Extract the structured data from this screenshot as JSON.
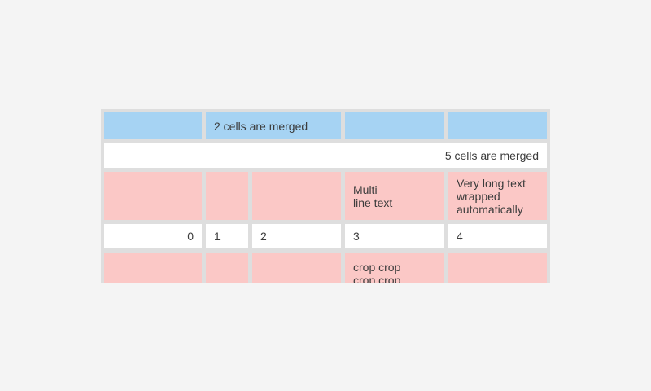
{
  "colors": {
    "page_bg": "#f4f4f4",
    "table_bg": "#dedede",
    "cell_blue": "#a6d3f3",
    "cell_pink": "#fbc8c6",
    "cell_white": "#ffffff",
    "text": "#3c3c3c"
  },
  "table": {
    "rows": [
      {
        "style": "blue",
        "cells": [
          {
            "text": ""
          },
          {
            "text": "2 cells are merged",
            "span": 2,
            "align": "left"
          },
          {
            "text": ""
          },
          {
            "text": ""
          }
        ]
      },
      {
        "style": "white",
        "cells": [
          {
            "text": "5 cells are merged",
            "span": 5,
            "align": "right"
          }
        ]
      },
      {
        "style": "pink",
        "cells": [
          {
            "text": ""
          },
          {
            "text": ""
          },
          {
            "text": ""
          },
          {
            "text": "Multi\nline text"
          },
          {
            "text": "Very long text wrapped automatically"
          }
        ]
      },
      {
        "style": "white",
        "cells": [
          {
            "text": "0",
            "align": "right"
          },
          {
            "text": "1",
            "align": "left"
          },
          {
            "text": "2",
            "align": "left"
          },
          {
            "text": "3",
            "align": "left"
          },
          {
            "text": "4",
            "align": "left"
          }
        ]
      },
      {
        "style": "pink",
        "cells": [
          {
            "text": ""
          },
          {
            "text": ""
          },
          {
            "text": ""
          },
          {
            "text": "crop crop crop crop",
            "cropped": true
          },
          {
            "text": ""
          }
        ]
      }
    ]
  }
}
